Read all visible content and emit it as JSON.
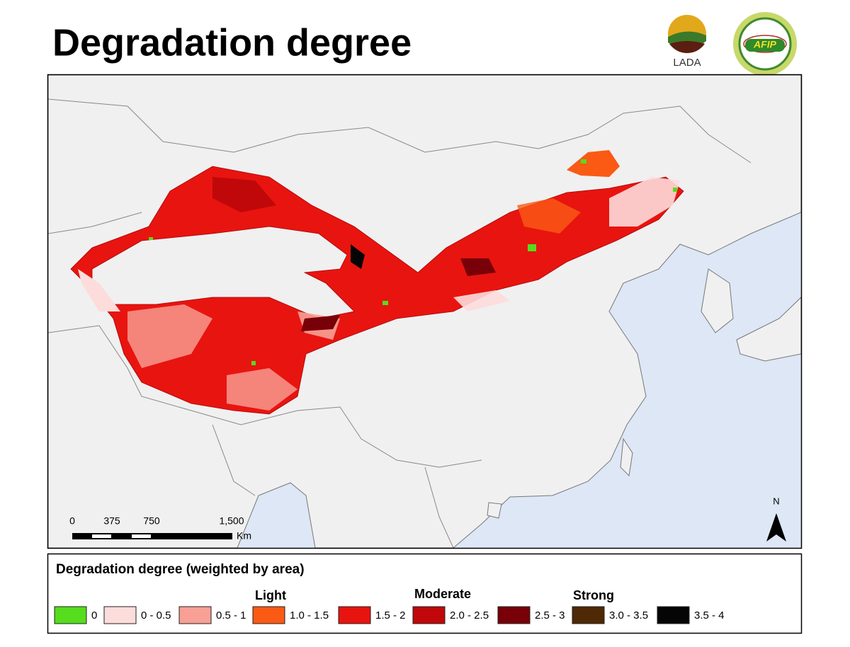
{
  "header": {
    "title": "Degradation degree",
    "logos": [
      "LADA",
      "AFIP"
    ]
  },
  "map": {
    "scale_bar": {
      "ticks": [
        "0",
        "375",
        "750",
        "1,500"
      ],
      "unit": "Km"
    },
    "north_label": "N"
  },
  "legend": {
    "title": "Degradation degree (weighted by area)",
    "groups": [
      "Light",
      "Moderate",
      "Strong"
    ],
    "items": [
      {
        "label": "0",
        "color": "#55dd1e"
      },
      {
        "label": "0 - 0.5",
        "color": "#fddcdc"
      },
      {
        "label": "0.5 - 1",
        "color": "#f8a096"
      },
      {
        "label": "1.0 - 1.5",
        "color": "#fa5a14"
      },
      {
        "label": "1.5 - 2",
        "color": "#e8140f"
      },
      {
        "label": "2.0 - 2.5",
        "color": "#c0080a"
      },
      {
        "label": "2.5 - 3",
        "color": "#780008"
      },
      {
        "label": "3.0 - 3.5",
        "color": "#4f2806"
      },
      {
        "label": "3.5 - 4",
        "color": "#050505"
      }
    ]
  }
}
